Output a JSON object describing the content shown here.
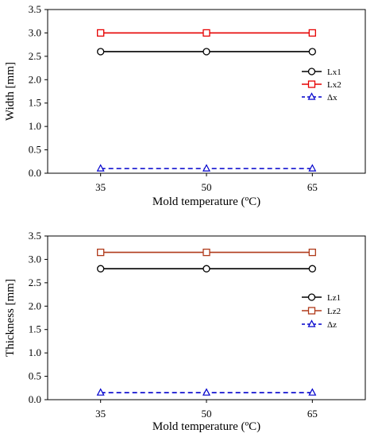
{
  "chart_data": [
    {
      "type": "line",
      "xlabel": "Mold temperature (ºC)",
      "ylabel": "Width [mm]",
      "ylim": [
        0,
        3.5
      ],
      "yticks": [
        "0.0",
        "0.5",
        "1.0",
        "1.5",
        "2.0",
        "2.5",
        "3.0",
        "3.5"
      ],
      "x": [
        "35",
        "50",
        "65"
      ],
      "grid": false,
      "legend_position": "right",
      "series": [
        {
          "name": "Lx1",
          "values": [
            2.6,
            2.6,
            2.6
          ],
          "color": "#000000",
          "marker": "circle",
          "dash": "solid"
        },
        {
          "name": "Lx2",
          "values": [
            3.0,
            3.0,
            3.0
          ],
          "color": "#e60000",
          "marker": "square",
          "dash": "solid"
        },
        {
          "name": "Δx",
          "values": [
            0.1,
            0.1,
            0.1
          ],
          "color": "#0000cc",
          "marker": "triangle",
          "dash": "dashed"
        }
      ]
    },
    {
      "type": "line",
      "xlabel": "Mold temperature (ºC)",
      "ylabel": "Thickness [mm]",
      "ylim": [
        0,
        3.5
      ],
      "yticks": [
        "0.0",
        "0.5",
        "1.0",
        "1.5",
        "2.0",
        "2.5",
        "3.0",
        "3.5"
      ],
      "x": [
        "35",
        "50",
        "65"
      ],
      "grid": false,
      "legend_position": "right",
      "series": [
        {
          "name": "Lz1",
          "values": [
            2.8,
            2.8,
            2.8
          ],
          "color": "#000000",
          "marker": "circle",
          "dash": "solid"
        },
        {
          "name": "Lz2",
          "values": [
            3.15,
            3.15,
            3.15
          ],
          "color": "#b03a1a",
          "marker": "square",
          "dash": "solid"
        },
        {
          "name": "Δz",
          "values": [
            0.15,
            0.15,
            0.15
          ],
          "color": "#0000cc",
          "marker": "triangle",
          "dash": "dashed"
        }
      ]
    }
  ]
}
